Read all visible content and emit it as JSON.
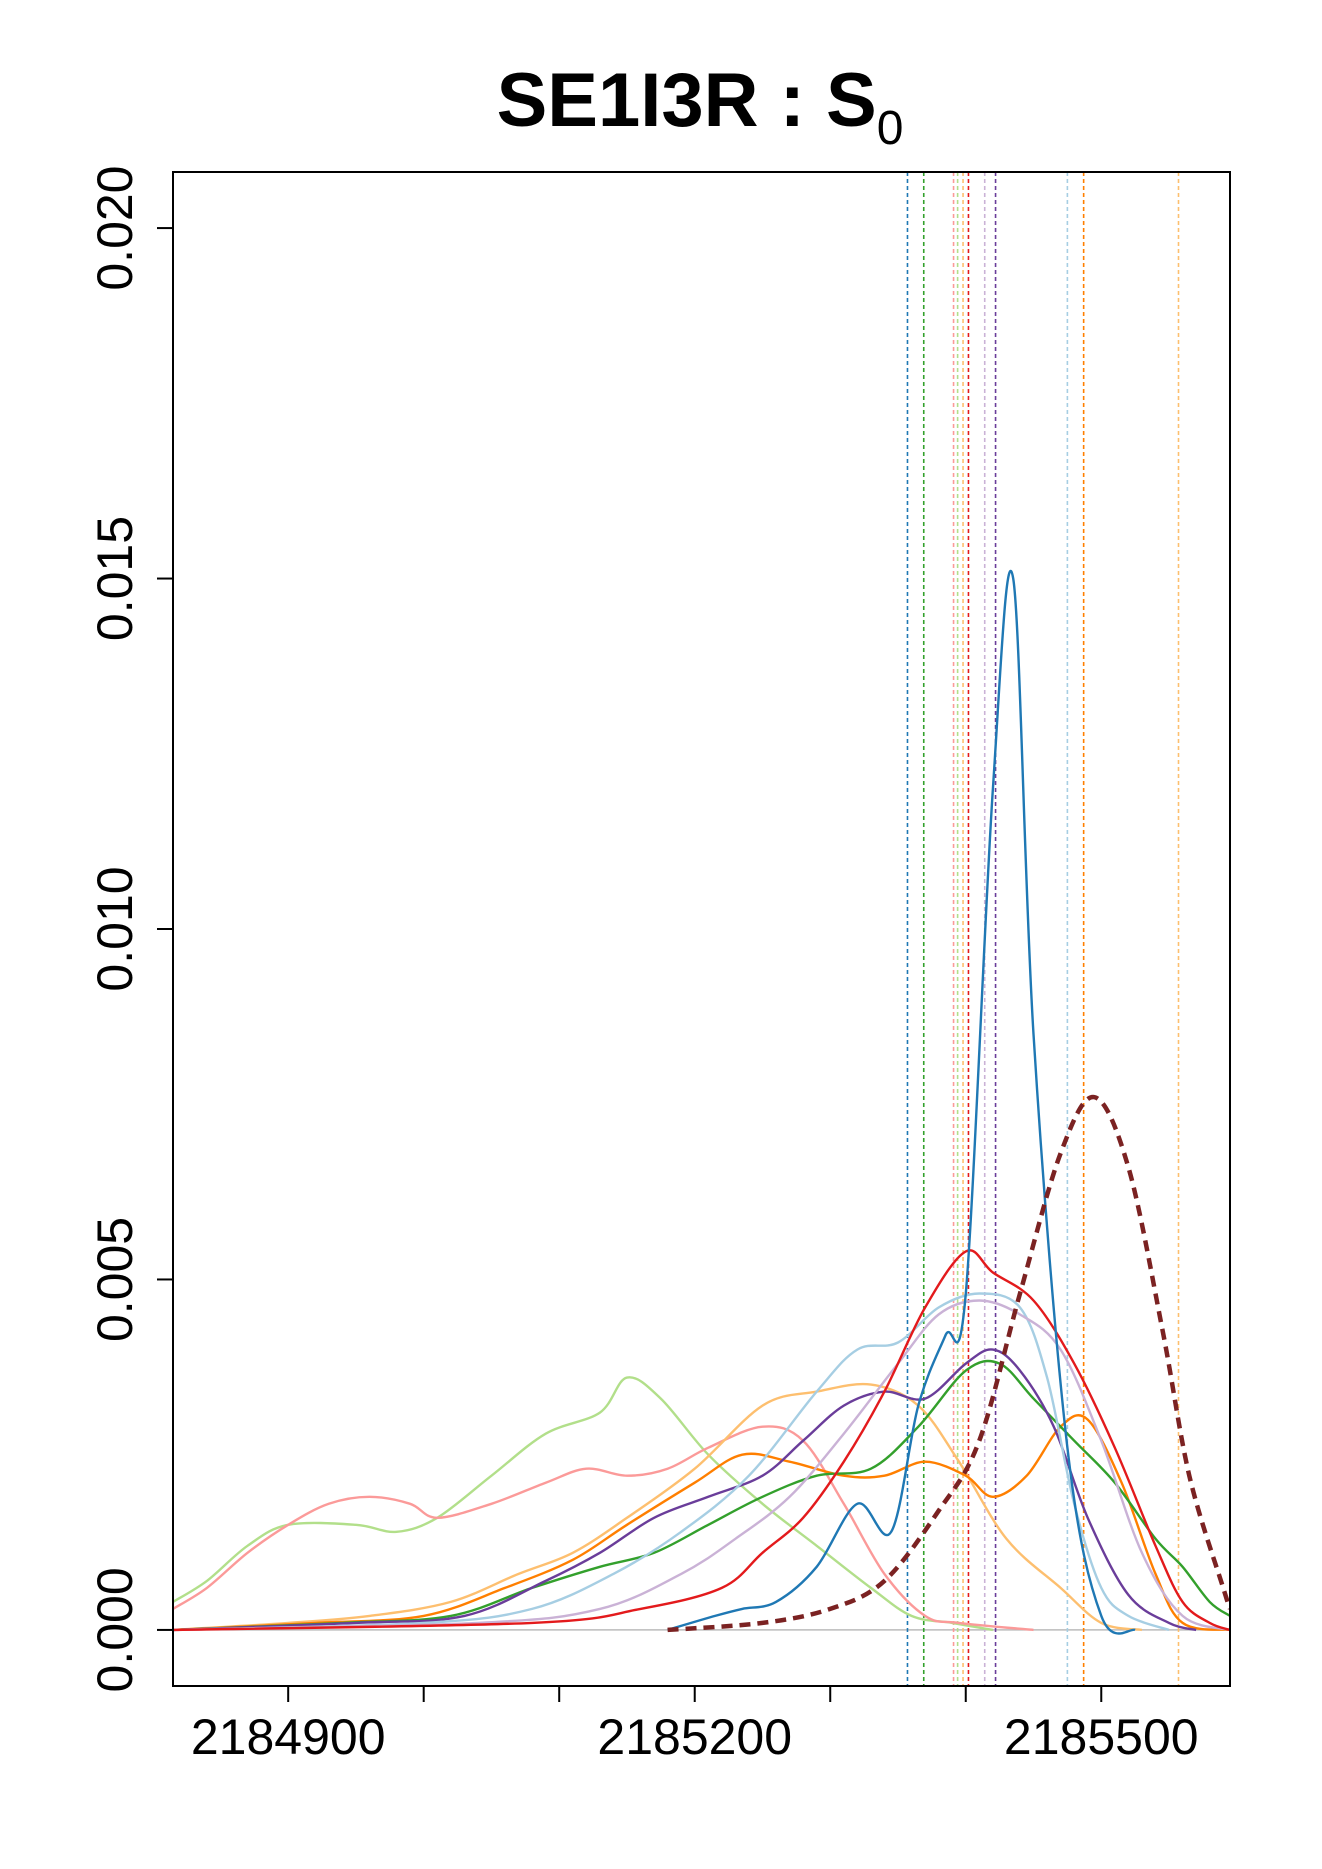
{
  "chart_data": {
    "type": "line",
    "title": "SE1I3R : S",
    "title_subscript": "0",
    "xlabel": "",
    "ylabel": "",
    "xlim": [
      2184815,
      2185595
    ],
    "ylim": [
      -0.0008,
      0.0208
    ],
    "x_ticks": [
      2184900,
      2185000,
      2185100,
      2185200,
      2185300,
      2185400,
      2185500
    ],
    "x_tick_labels": [
      "2184900",
      "",
      "",
      "2185200",
      "",
      "",
      "2185500"
    ],
    "y_ticks": [
      0.0,
      0.005,
      0.01,
      0.015,
      0.02
    ],
    "y_tick_labels": [
      "0.000",
      "0.005",
      "0.010",
      "0.015",
      "0.020"
    ],
    "grid": false,
    "legend": "none",
    "baseline": {
      "y": 0.0,
      "color": "#bbbbbb"
    },
    "series": [
      {
        "color": "#b2df8a",
        "style": "solid",
        "points": [
          [
            2184815,
            0.0004
          ],
          [
            2184840,
            0.0007
          ],
          [
            2184870,
            0.0012
          ],
          [
            2184900,
            0.0015
          ],
          [
            2184950,
            0.0015
          ],
          [
            2184980,
            0.0014
          ],
          [
            2185010,
            0.0016
          ],
          [
            2185050,
            0.0022
          ],
          [
            2185090,
            0.0028
          ],
          [
            2185130,
            0.0031
          ],
          [
            2185150,
            0.0036
          ],
          [
            2185175,
            0.0033
          ],
          [
            2185210,
            0.0025
          ],
          [
            2185250,
            0.0018
          ],
          [
            2185290,
            0.0012
          ],
          [
            2185330,
            0.0006
          ],
          [
            2185360,
            0.0002
          ],
          [
            2185390,
            0.0001
          ],
          [
            2185420,
            0.0
          ]
        ]
      },
      {
        "color": "#fb9a99",
        "style": "solid",
        "points": [
          [
            2184815,
            0.0003
          ],
          [
            2184840,
            0.0006
          ],
          [
            2184870,
            0.0011
          ],
          [
            2184900,
            0.0015
          ],
          [
            2184930,
            0.0018
          ],
          [
            2184960,
            0.0019
          ],
          [
            2184990,
            0.0018
          ],
          [
            2185010,
            0.0016
          ],
          [
            2185050,
            0.0018
          ],
          [
            2185090,
            0.0021
          ],
          [
            2185120,
            0.0023
          ],
          [
            2185150,
            0.0022
          ],
          [
            2185180,
            0.0023
          ],
          [
            2185210,
            0.0026
          ],
          [
            2185250,
            0.0029
          ],
          [
            2185280,
            0.0027
          ],
          [
            2185310,
            0.0018
          ],
          [
            2185340,
            0.0008
          ],
          [
            2185370,
            0.0002
          ],
          [
            2185395,
            0.0001
          ],
          [
            2185450,
            0.0
          ]
        ]
      },
      {
        "color": "#fdbf6f",
        "style": "solid",
        "points": [
          [
            2184815,
            0.0
          ],
          [
            2184900,
            0.0001
          ],
          [
            2184960,
            0.0002
          ],
          [
            2185020,
            0.0004
          ],
          [
            2185070,
            0.0008
          ],
          [
            2185110,
            0.0011
          ],
          [
            2185150,
            0.0016
          ],
          [
            2185200,
            0.0023
          ],
          [
            2185250,
            0.0032
          ],
          [
            2185290,
            0.0034
          ],
          [
            2185330,
            0.0035
          ],
          [
            2185365,
            0.0032
          ],
          [
            2185395,
            0.0024
          ],
          [
            2185430,
            0.0013
          ],
          [
            2185470,
            0.0006
          ],
          [
            2185500,
            0.0001
          ],
          [
            2185530,
            0.0
          ]
        ]
      },
      {
        "color": "#ff7f00",
        "style": "solid",
        "points": [
          [
            2184815,
            0.0
          ],
          [
            2184920,
            0.0001
          ],
          [
            2185000,
            0.0002
          ],
          [
            2185060,
            0.0006
          ],
          [
            2185110,
            0.001
          ],
          [
            2185150,
            0.0015
          ],
          [
            2185200,
            0.0021
          ],
          [
            2185235,
            0.0025
          ],
          [
            2185270,
            0.0024
          ],
          [
            2185310,
            0.0022
          ],
          [
            2185340,
            0.0022
          ],
          [
            2185370,
            0.0024
          ],
          [
            2185400,
            0.0022
          ],
          [
            2185420,
            0.0019
          ],
          [
            2185445,
            0.0022
          ],
          [
            2185470,
            0.0029
          ],
          [
            2185490,
            0.003
          ],
          [
            2185515,
            0.0021
          ],
          [
            2185540,
            0.0008
          ],
          [
            2185560,
            0.0001
          ],
          [
            2185595,
            0.0
          ]
        ]
      },
      {
        "color": "#33a02c",
        "style": "solid",
        "points": [
          [
            2184815,
            0.0
          ],
          [
            2184940,
            0.0001
          ],
          [
            2185020,
            0.0002
          ],
          [
            2185080,
            0.0006
          ],
          [
            2185130,
            0.0009
          ],
          [
            2185170,
            0.0011
          ],
          [
            2185210,
            0.0015
          ],
          [
            2185250,
            0.0019
          ],
          [
            2185290,
            0.0022
          ],
          [
            2185330,
            0.0023
          ],
          [
            2185365,
            0.0029
          ],
          [
            2185400,
            0.0037
          ],
          [
            2185425,
            0.0038
          ],
          [
            2185450,
            0.0033
          ],
          [
            2185480,
            0.0027
          ],
          [
            2185510,
            0.0021
          ],
          [
            2185540,
            0.0013
          ],
          [
            2185560,
            0.0009
          ],
          [
            2185580,
            0.0004
          ],
          [
            2185595,
            0.0002
          ]
        ]
      },
      {
        "color": "#6a3d9a",
        "style": "solid",
        "points": [
          [
            2184815,
            0.0
          ],
          [
            2184950,
            0.0001
          ],
          [
            2185030,
            0.0002
          ],
          [
            2185090,
            0.0007
          ],
          [
            2185130,
            0.0011
          ],
          [
            2185170,
            0.0016
          ],
          [
            2185210,
            0.0019
          ],
          [
            2185250,
            0.0022
          ],
          [
            2185280,
            0.0027
          ],
          [
            2185310,
            0.0032
          ],
          [
            2185340,
            0.0034
          ],
          [
            2185370,
            0.0033
          ],
          [
            2185400,
            0.0038
          ],
          [
            2185420,
            0.004
          ],
          [
            2185440,
            0.0037
          ],
          [
            2185465,
            0.0029
          ],
          [
            2185490,
            0.0016
          ],
          [
            2185520,
            0.0005
          ],
          [
            2185550,
            0.0001
          ],
          [
            2185570,
            0.0
          ]
        ]
      },
      {
        "color": "#a6cee3",
        "style": "solid",
        "points": [
          [
            2184815,
            0.0
          ],
          [
            2185000,
            0.0001
          ],
          [
            2185080,
            0.0003
          ],
          [
            2185140,
            0.0008
          ],
          [
            2185190,
            0.0014
          ],
          [
            2185240,
            0.0022
          ],
          [
            2185290,
            0.0034
          ],
          [
            2185320,
            0.004
          ],
          [
            2185350,
            0.0041
          ],
          [
            2185380,
            0.0046
          ],
          [
            2185410,
            0.0048
          ],
          [
            2185440,
            0.0046
          ],
          [
            2185460,
            0.0036
          ],
          [
            2185480,
            0.0018
          ],
          [
            2185500,
            0.0006
          ],
          [
            2185520,
            0.0002
          ],
          [
            2185550,
            0.0
          ]
        ]
      },
      {
        "color": "#cab2d6",
        "style": "solid",
        "points": [
          [
            2184815,
            0.0
          ],
          [
            2185040,
            0.0001
          ],
          [
            2185130,
            0.0003
          ],
          [
            2185190,
            0.0008
          ],
          [
            2185230,
            0.0013
          ],
          [
            2185270,
            0.0019
          ],
          [
            2185310,
            0.0028
          ],
          [
            2185350,
            0.0038
          ],
          [
            2185380,
            0.0045
          ],
          [
            2185410,
            0.0047
          ],
          [
            2185440,
            0.0045
          ],
          [
            2185470,
            0.004
          ],
          [
            2185500,
            0.0027
          ],
          [
            2185530,
            0.0011
          ],
          [
            2185560,
            0.0002
          ],
          [
            2185595,
            0.0
          ]
        ]
      },
      {
        "color": "#e31a1c",
        "style": "solid",
        "points": [
          [
            2184815,
            0.0
          ],
          [
            2185080,
            0.0001
          ],
          [
            2185160,
            0.0003
          ],
          [
            2185220,
            0.0006
          ],
          [
            2185250,
            0.0011
          ],
          [
            2185280,
            0.0016
          ],
          [
            2185310,
            0.0024
          ],
          [
            2185340,
            0.0034
          ],
          [
            2185370,
            0.0046
          ],
          [
            2185400,
            0.0054
          ],
          [
            2185420,
            0.0051
          ],
          [
            2185450,
            0.0047
          ],
          [
            2185480,
            0.0038
          ],
          [
            2185510,
            0.0026
          ],
          [
            2185540,
            0.0012
          ],
          [
            2185560,
            0.0004
          ],
          [
            2185580,
            0.0001
          ],
          [
            2185595,
            0.0
          ]
        ]
      },
      {
        "color": "#1f78b4",
        "style": "solid",
        "points": [
          [
            2185180,
            0.0
          ],
          [
            2185215,
            0.0002
          ],
          [
            2185235,
            0.0003
          ],
          [
            2185260,
            0.0004
          ],
          [
            2185290,
            0.0009
          ],
          [
            2185320,
            0.0018
          ],
          [
            2185345,
            0.0014
          ],
          [
            2185365,
            0.0032
          ],
          [
            2185385,
            0.0042
          ],
          [
            2185400,
            0.0048
          ],
          [
            2185420,
            0.012
          ],
          [
            2185435,
            0.015
          ],
          [
            2185450,
            0.0085
          ],
          [
            2185475,
            0.0026
          ],
          [
            2185500,
            0.0002
          ],
          [
            2185525,
            0.0
          ]
        ]
      },
      {
        "color": "#7b2222",
        "style": "dashed",
        "points": [
          [
            2185180,
            0.0
          ],
          [
            2185250,
            0.0001
          ],
          [
            2185300,
            0.0003
          ],
          [
            2185340,
            0.0007
          ],
          [
            2185380,
            0.0017
          ],
          [
            2185410,
            0.0027
          ],
          [
            2185440,
            0.0048
          ],
          [
            2185470,
            0.0068
          ],
          [
            2185495,
            0.0076
          ],
          [
            2185520,
            0.0066
          ],
          [
            2185545,
            0.0043
          ],
          [
            2185565,
            0.0022
          ],
          [
            2185590,
            0.0006
          ],
          [
            2185595,
            0.0003
          ]
        ]
      }
    ],
    "vlines": [
      {
        "x": 2185357,
        "color": "#1f78b4"
      },
      {
        "x": 2185369,
        "color": "#33a02c"
      },
      {
        "x": 2185391,
        "color": "#fb9a99"
      },
      {
        "x": 2185394,
        "color": "#b2df8a"
      },
      {
        "x": 2185398,
        "color": "#fdbf6f"
      },
      {
        "x": 2185402,
        "color": "#e31a1c"
      },
      {
        "x": 2185414,
        "color": "#cab2d6"
      },
      {
        "x": 2185422,
        "color": "#6a3d9a"
      },
      {
        "x": 2185475,
        "color": "#a6cee3"
      },
      {
        "x": 2185487,
        "color": "#ff7f00"
      },
      {
        "x": 2185557,
        "color": "#fdbf6f"
      }
    ]
  }
}
